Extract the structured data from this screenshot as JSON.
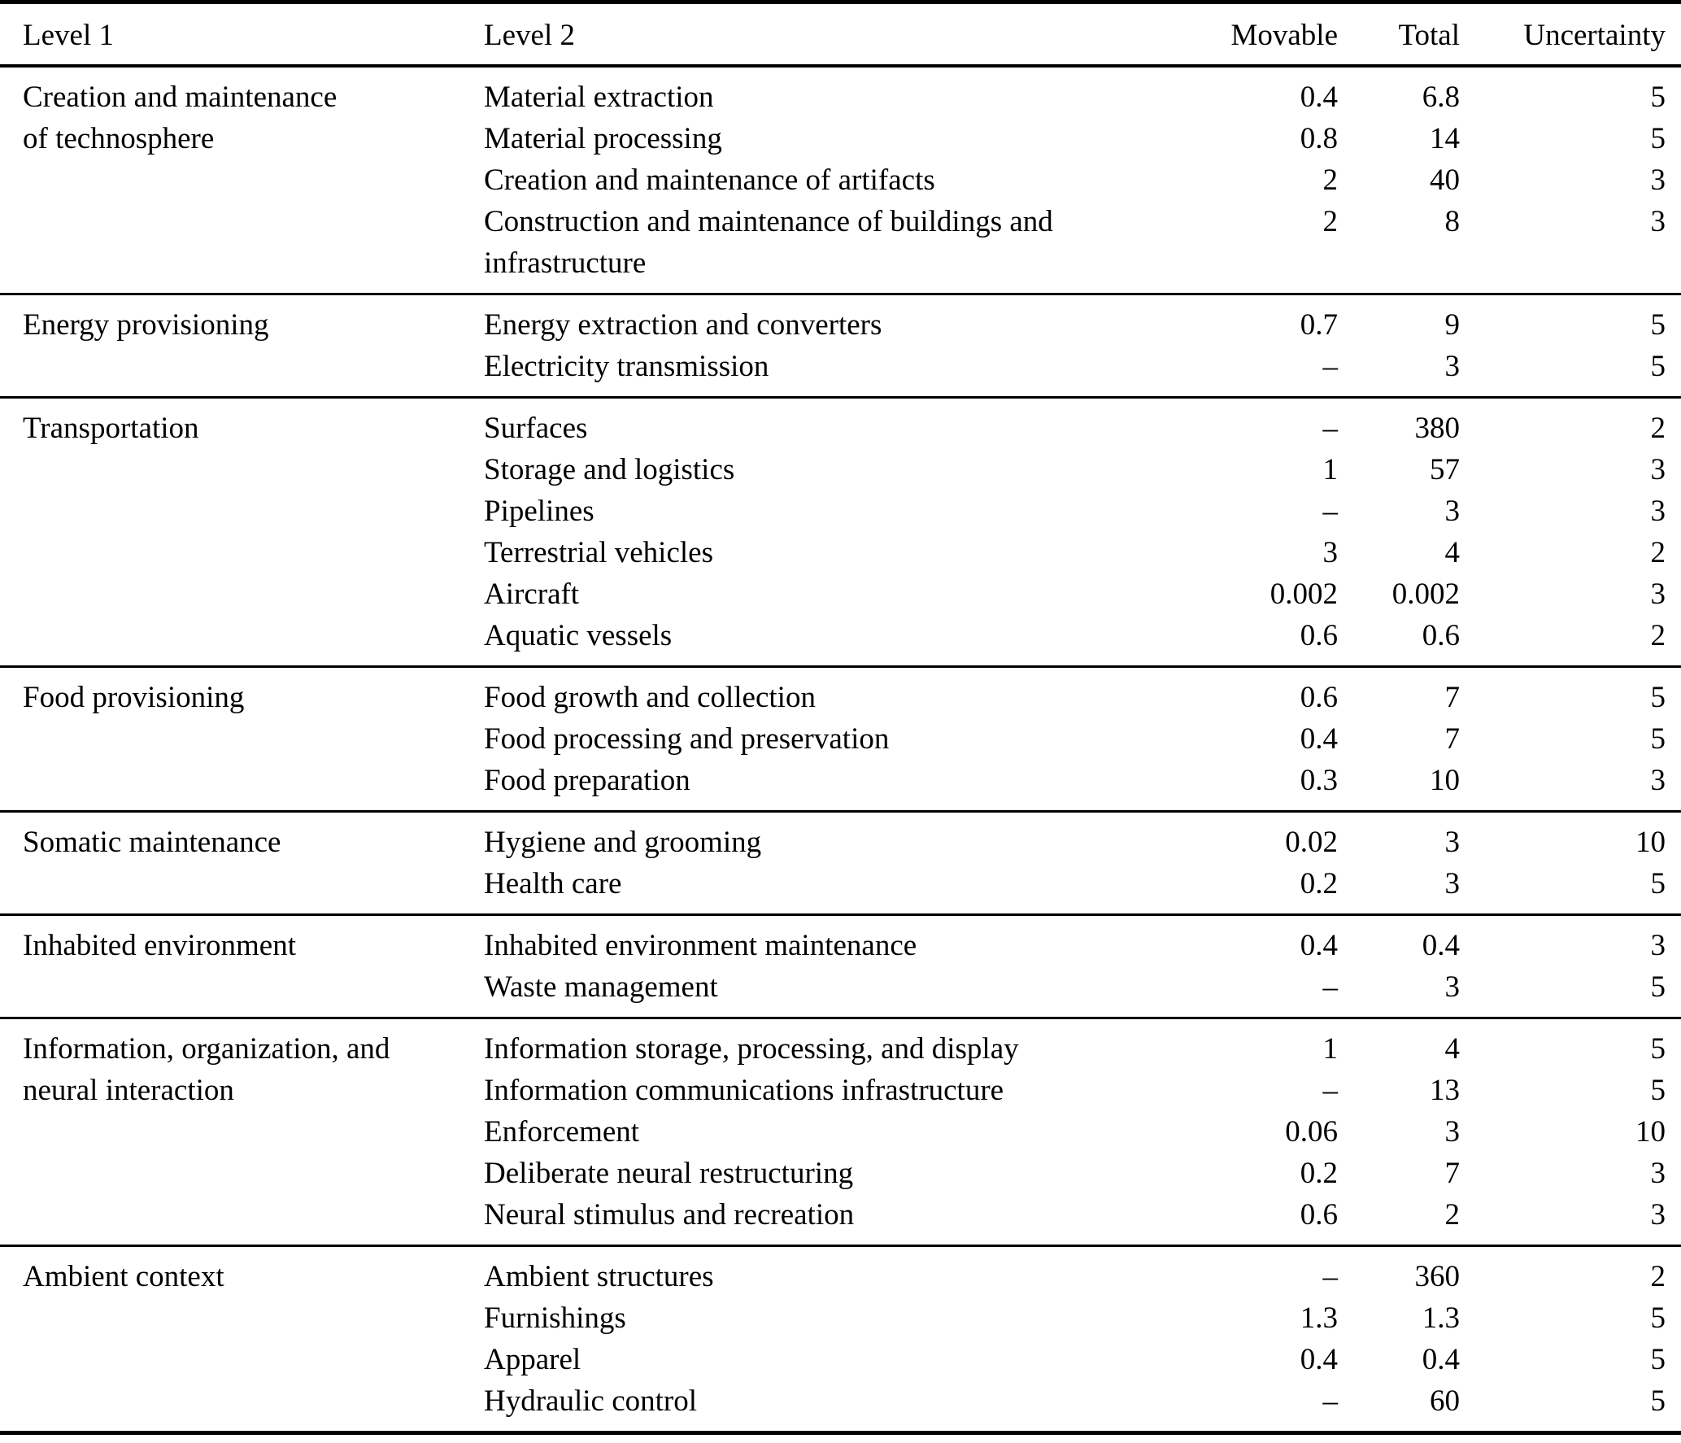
{
  "table": {
    "columns": [
      "Level 1",
      "Level 2",
      "Movable",
      "Total",
      "Uncertainty"
    ],
    "groups": [
      {
        "level1": [
          "Creation and maintenance",
          "of technosphere"
        ],
        "rows": [
          {
            "level2": "Material extraction",
            "movable": "0.4",
            "total": "6.8",
            "uncertainty": "5"
          },
          {
            "level2": "Material processing",
            "movable": "0.8",
            "total": "14",
            "uncertainty": "5"
          },
          {
            "level2": "Creation and maintenance of artifacts",
            "movable": "2",
            "total": "40",
            "uncertainty": "3"
          },
          {
            "level2": [
              "Construction and maintenance of buildings and",
              "infrastructure"
            ],
            "movable": "2",
            "total": "8",
            "uncertainty": "3"
          }
        ]
      },
      {
        "level1": "Energy provisioning",
        "rows": [
          {
            "level2": "Energy extraction and converters",
            "movable": "0.7",
            "total": "9",
            "uncertainty": "5"
          },
          {
            "level2": "Electricity transmission",
            "movable": "–",
            "total": "3",
            "uncertainty": "5"
          }
        ]
      },
      {
        "level1": "Transportation",
        "rows": [
          {
            "level2": "Surfaces",
            "movable": "–",
            "total": "380",
            "uncertainty": "2"
          },
          {
            "level2": "Storage and logistics",
            "movable": "1",
            "total": "57",
            "uncertainty": "3"
          },
          {
            "level2": "Pipelines",
            "movable": "–",
            "total": "3",
            "uncertainty": "3"
          },
          {
            "level2": "Terrestrial vehicles",
            "movable": "3",
            "total": "4",
            "uncertainty": "2"
          },
          {
            "level2": "Aircraft",
            "movable": "0.002",
            "total": "0.002",
            "uncertainty": "3"
          },
          {
            "level2": "Aquatic vessels",
            "movable": "0.6",
            "total": "0.6",
            "uncertainty": "2"
          }
        ]
      },
      {
        "level1": "Food provisioning",
        "rows": [
          {
            "level2": "Food growth and collection",
            "movable": "0.6",
            "total": "7",
            "uncertainty": "5"
          },
          {
            "level2": "Food processing and preservation",
            "movable": "0.4",
            "total": "7",
            "uncertainty": "5"
          },
          {
            "level2": "Food preparation",
            "movable": "0.3",
            "total": "10",
            "uncertainty": "3"
          }
        ]
      },
      {
        "level1": "Somatic maintenance",
        "rows": [
          {
            "level2": "Hygiene and grooming",
            "movable": "0.02",
            "total": "3",
            "uncertainty": "10"
          },
          {
            "level2": "Health care",
            "movable": "0.2",
            "total": "3",
            "uncertainty": "5"
          }
        ]
      },
      {
        "level1": "Inhabited environment",
        "rows": [
          {
            "level2": "Inhabited environment maintenance",
            "movable": "0.4",
            "total": "0.4",
            "uncertainty": "3"
          },
          {
            "level2": "Waste management",
            "movable": "–",
            "total": "3",
            "uncertainty": "5"
          }
        ]
      },
      {
        "level1": [
          "Information, organization, and",
          "neural interaction"
        ],
        "rows": [
          {
            "level2": "Information storage, processing, and display",
            "movable": "1",
            "total": "4",
            "uncertainty": "5"
          },
          {
            "level2": "Information communications infrastructure",
            "movable": "–",
            "total": "13",
            "uncertainty": "5"
          },
          {
            "level2": "Enforcement",
            "movable": "0.06",
            "total": "3",
            "uncertainty": "10"
          },
          {
            "level2": "Deliberate neural restructuring",
            "movable": "0.2",
            "total": "7",
            "uncertainty": "3"
          },
          {
            "level2": "Neural stimulus and recreation",
            "movable": "0.6",
            "total": "2",
            "uncertainty": "3"
          }
        ]
      },
      {
        "level1": "Ambient context",
        "rows": [
          {
            "level2": "Ambient structures",
            "movable": "–",
            "total": "360",
            "uncertainty": "2"
          },
          {
            "level2": "Furnishings",
            "movable": "1.3",
            "total": "1.3",
            "uncertainty": "5"
          },
          {
            "level2": "Apparel",
            "movable": "0.4",
            "total": "0.4",
            "uncertainty": "5"
          },
          {
            "level2": "Hydraulic control",
            "movable": "–",
            "total": "60",
            "uncertainty": "5"
          }
        ]
      }
    ]
  }
}
